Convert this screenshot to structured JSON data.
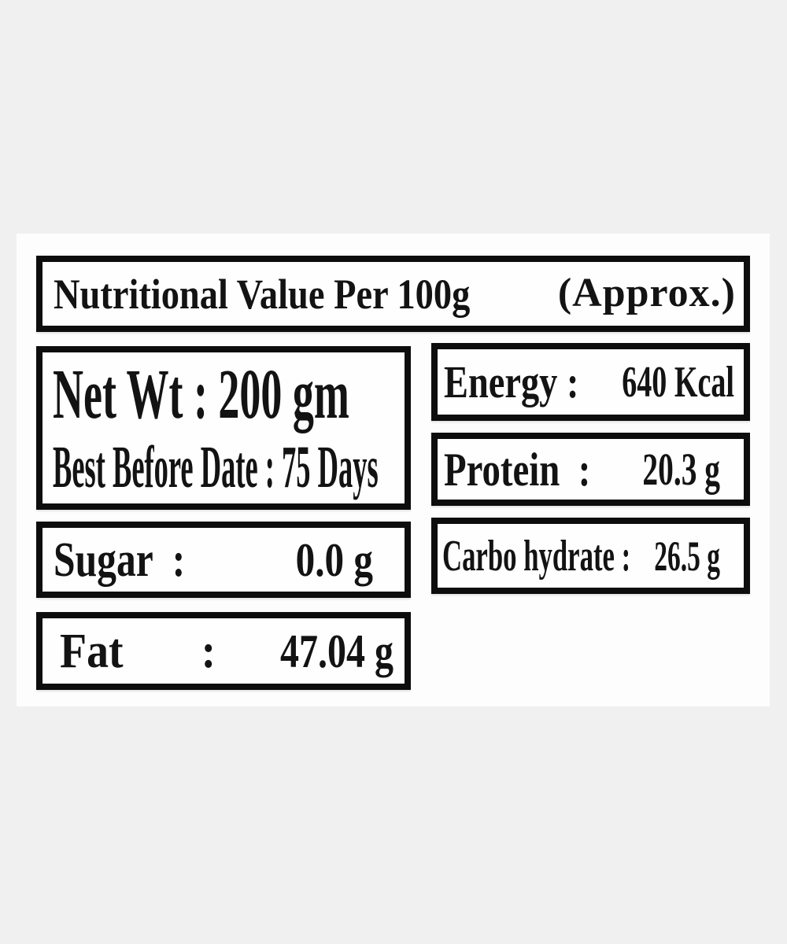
{
  "colors": {
    "page_bg": "#f0f0f0",
    "card_bg": "#fdfdfd",
    "box_bg": "#fefefe",
    "border": "#0d0d0d",
    "text": "#131313"
  },
  "title": {
    "main": "Nutritional Value Per 100g",
    "approx": "(Approx.)"
  },
  "net_weight": {
    "line1": "Net Wt : 200 gm",
    "line2": "Best Before Date : 75 Days"
  },
  "nutrients": {
    "energy": {
      "label": "Energy :",
      "value": "640 Kcal"
    },
    "protein": {
      "label": "Protein  :",
      "value": "20.3 g"
    },
    "carbohydrate": {
      "label": "Carbo hydrate :",
      "value": "26.5 g"
    },
    "sugar": {
      "label": "Sugar  :",
      "value": "0.0 g"
    },
    "fat": {
      "label": "Fat    :",
      "value": "47.04 g"
    }
  }
}
